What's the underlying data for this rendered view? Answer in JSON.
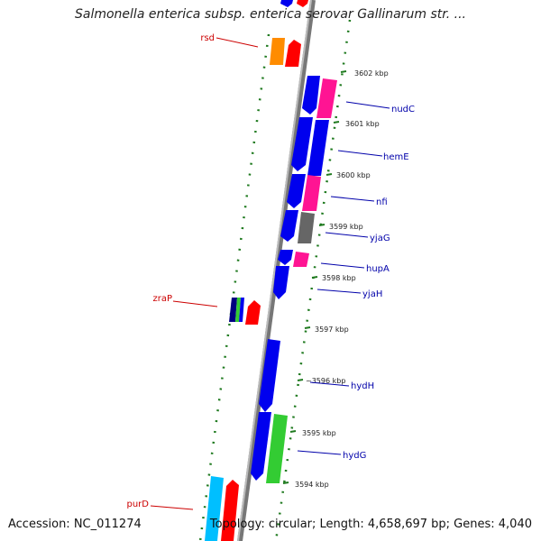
{
  "title": "Salmonella enterica subsp. enterica serovar Gallinarum str. ...",
  "footer": {
    "accession": "Accession: NC_011274",
    "summary": "Topology: circular; Length: 4,658,697 bp; Genes: 4,040"
  },
  "colors": {
    "backbone": "#8a8a8a",
    "ring_dots": "#1f7a1f",
    "left_label": "#cc0000",
    "right_label": "#0000aa",
    "blue_gene": "#0000ee",
    "pink_gene": "#ff1493",
    "red_gene": "#ff0000",
    "orange_gene": "#ff8c00",
    "gray_gene": "#666666",
    "green_gene": "#33cc33",
    "cyan_gene": "#00bfff"
  },
  "kbp_ticks": [
    "3602 kbp",
    "3601 kbp",
    "3600 kbp",
    "3599 kbp",
    "3598 kbp",
    "3597 kbp",
    "~3596 kbp",
    "3595 kbp",
    "3594 kbp"
  ],
  "genes_right": [
    "nudC",
    "hemE",
    "nfi",
    "yjaG",
    "hupA",
    "yjaH",
    "hydH",
    "hydG"
  ],
  "genes_left": [
    "rsd",
    "zraP",
    "purD"
  ]
}
